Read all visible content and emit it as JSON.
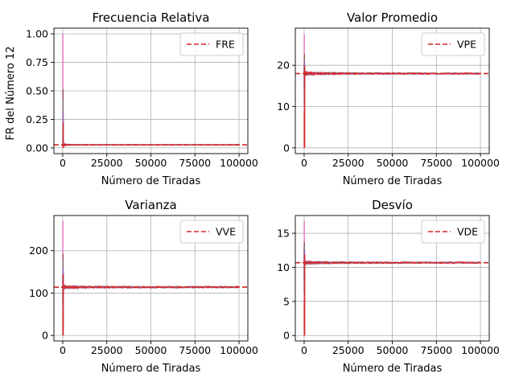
{
  "figure": {
    "ylabel": "FR del Número 12"
  },
  "chart_data": [
    {
      "type": "line",
      "title": "Frecuencia Relativa",
      "xlabel": "Número de Tiradas",
      "ylabel": "FR del Número 12",
      "xlim": [
        -5000,
        105000
      ],
      "ylim": [
        -0.05,
        1.05
      ],
      "xticks": [
        0,
        25000,
        50000,
        75000,
        100000
      ],
      "yticks": [
        0.0,
        0.25,
        0.5,
        0.75,
        1.0
      ],
      "ytick_labels": [
        "0.00",
        "0.25",
        "0.50",
        "0.75",
        "1.00"
      ],
      "grid": true,
      "legend": {
        "position": "top-right",
        "entries": [
          {
            "name": "FRE",
            "style": "dashed",
            "color": "#d62728"
          }
        ]
      },
      "expected": {
        "name": "FRE",
        "value": 0.027
      },
      "runs": {
        "x_end": 100000,
        "converged": 0.027,
        "max": 1.0,
        "min": 0.0,
        "spread_after_early": 0.012
      },
      "colors": [
        "#e377c2",
        "#8c564b",
        "#7f7f7f",
        "#9467bd",
        "#d62728"
      ]
    },
    {
      "type": "line",
      "title": "Valor Promedio",
      "xlabel": "Número de Tiradas",
      "ylabel": "",
      "xlim": [
        -5000,
        105000
      ],
      "ylim": [
        -1.4,
        29.0
      ],
      "xticks": [
        0,
        25000,
        50000,
        75000,
        100000
      ],
      "yticks": [
        0,
        10,
        20
      ],
      "ytick_labels": [
        "0",
        "10",
        "20"
      ],
      "grid": true,
      "legend": {
        "position": "top-right",
        "entries": [
          {
            "name": "VPE",
            "style": "dashed",
            "color": "#d62728"
          }
        ]
      },
      "expected": {
        "name": "VPE",
        "value": 18
      },
      "runs": {
        "x_end": 100000,
        "converged": 18,
        "max": 27.5,
        "min": 0,
        "spread_after_early": 1.2
      },
      "colors": [
        "#e377c2",
        "#8c564b",
        "#7f7f7f",
        "#9467bd",
        "#d62728"
      ]
    },
    {
      "type": "line",
      "title": "Varianza",
      "xlabel": "Número de Tiradas",
      "ylabel": "",
      "xlim": [
        -5000,
        105000
      ],
      "ylim": [
        -13,
        283
      ],
      "xticks": [
        0,
        25000,
        50000,
        75000,
        100000
      ],
      "yticks": [
        0,
        100,
        200
      ],
      "ytick_labels": [
        "0",
        "100",
        "200"
      ],
      "grid": true,
      "legend": {
        "position": "top-right",
        "entries": [
          {
            "name": "VVE",
            "style": "dashed",
            "color": "#d62728"
          }
        ]
      },
      "expected": {
        "name": "VVE",
        "value": 114
      },
      "runs": {
        "x_end": 100000,
        "converged": 114,
        "max": 270,
        "min": 0,
        "spread_after_early": 12
      },
      "colors": [
        "#e377c2",
        "#8c564b",
        "#7f7f7f",
        "#9467bd",
        "#d62728"
      ]
    },
    {
      "type": "line",
      "title": "Desvío",
      "xlabel": "Número de Tiradas",
      "ylabel": "",
      "xlim": [
        -5000,
        105000
      ],
      "ylim": [
        -0.8,
        17.6
      ],
      "xticks": [
        0,
        25000,
        50000,
        75000,
        100000
      ],
      "yticks": [
        0,
        5,
        10,
        15
      ],
      "ytick_labels": [
        "0",
        "5",
        "10",
        "15"
      ],
      "grid": true,
      "legend": {
        "position": "top-right",
        "entries": [
          {
            "name": "VDE",
            "style": "dashed",
            "color": "#d62728"
          }
        ]
      },
      "expected": {
        "name": "VDE",
        "value": 10.68
      },
      "runs": {
        "x_end": 100000,
        "converged": 10.68,
        "max": 16.8,
        "min": 0,
        "spread_after_early": 0.7
      },
      "colors": [
        "#e377c2",
        "#8c564b",
        "#7f7f7f",
        "#9467bd",
        "#d62728"
      ]
    }
  ]
}
